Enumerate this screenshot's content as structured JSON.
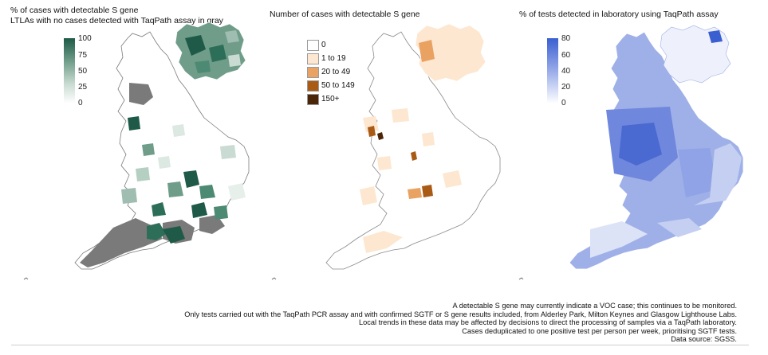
{
  "panels": [
    {
      "id": "pct_s_gene",
      "title_lines": [
        "% of cases with detectable S gene",
        "LTLAs with no cases detected with TaqPath assay in gray"
      ],
      "legend": {
        "type": "continuous",
        "ticks": [
          "100",
          "75",
          "50",
          "25",
          "0"
        ],
        "color_high": "#1e5a47",
        "color_low": "#ffffff"
      },
      "no_data_color": "#7a7a7a"
    },
    {
      "id": "num_s_gene",
      "title_lines": [
        "Number of cases with detectable S gene"
      ],
      "legend": {
        "type": "categorical",
        "categories": [
          {
            "label": "0",
            "color": "#ffffff"
          },
          {
            "label": "1 to 19",
            "color": "#fde7d0"
          },
          {
            "label": "20 to 49",
            "color": "#e9a262"
          },
          {
            "label": "50 to 149",
            "color": "#a95a14"
          },
          {
            "label": "150+",
            "color": "#4a2508"
          }
        ]
      }
    },
    {
      "id": "pct_taqpath",
      "title_lines": [
        "% of tests detected in laboratory using TaqPath assay"
      ],
      "legend": {
        "type": "continuous",
        "ticks": [
          "80",
          "60",
          "40",
          "20",
          "0"
        ],
        "color_high": "#3a5fd0",
        "color_low": "#ffffff"
      }
    }
  ],
  "footnotes": [
    "A detectable S gene may currently indicate a VOC case; this continues to be monitored.",
    "Only tests carried out with the TaqPath PCR assay and with confirmed SGTF or S gene results included, from Alderley Park, Milton Keynes and Glasgow Lighthouse Labs.",
    "Local trends in these data may be affected by decisions to direct the processing of samples via a TaqPath laboratory.",
    "Cases deduplicated to one positive test per person per week, prioritising SGTF tests.",
    "Data source: SGSS."
  ]
}
